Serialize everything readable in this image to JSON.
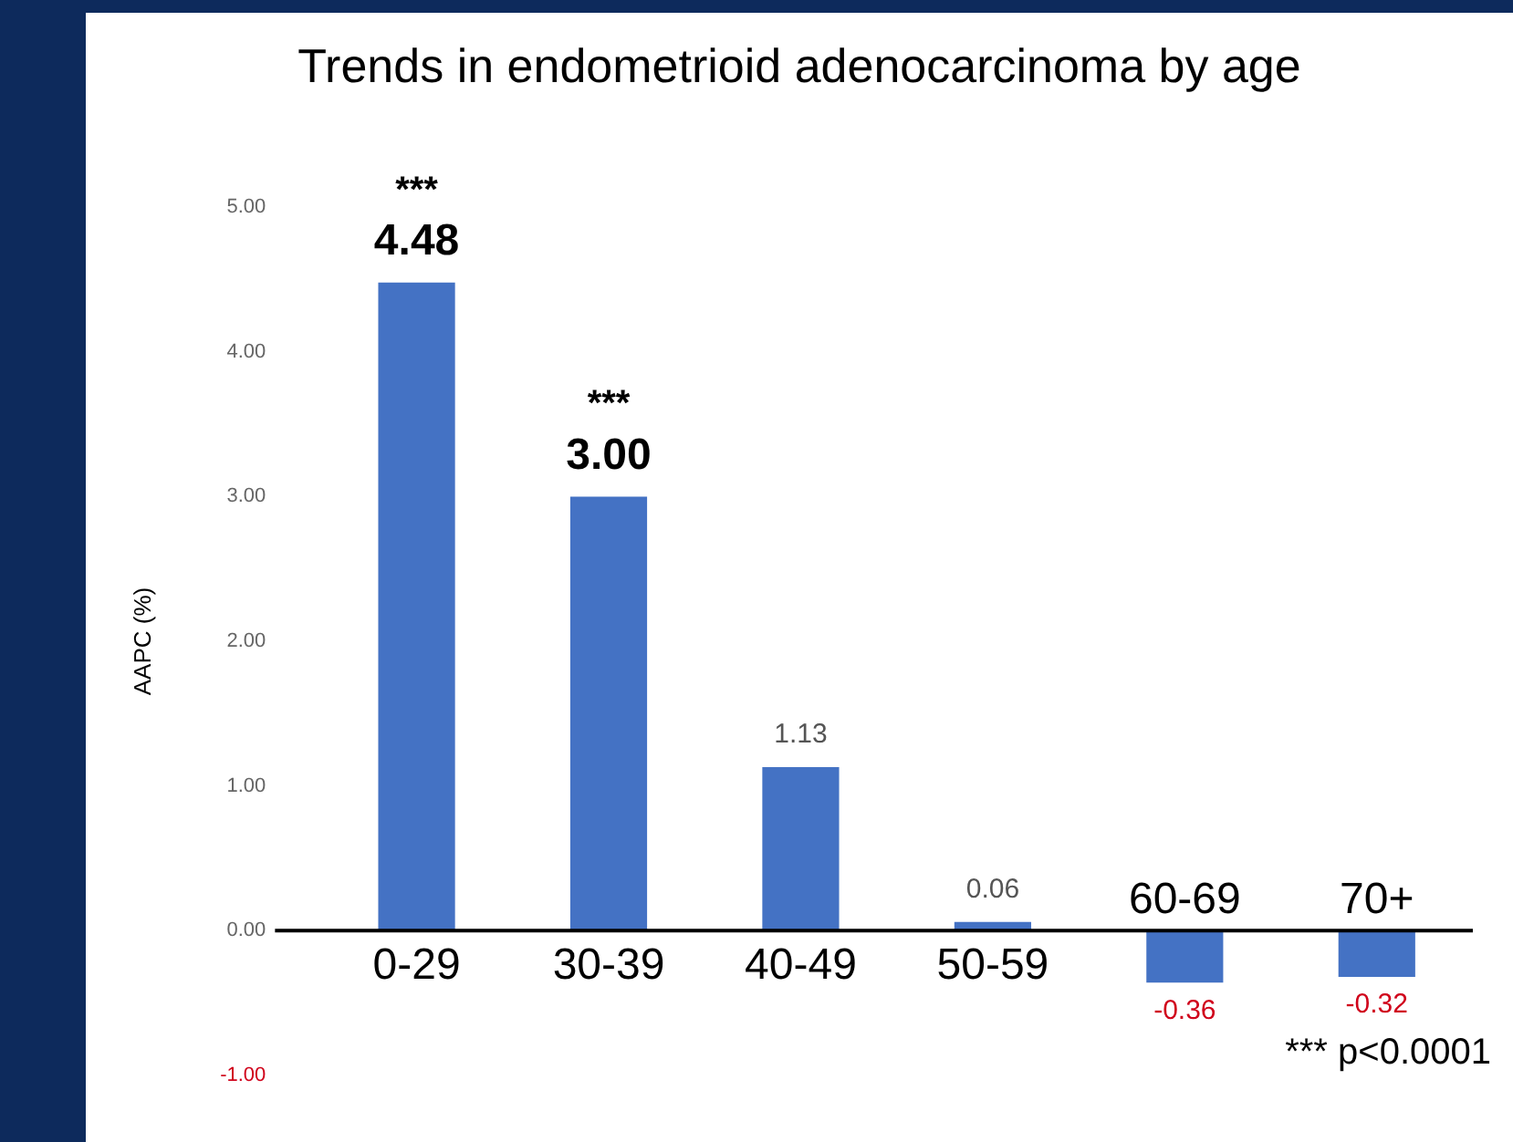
{
  "chart_data": {
    "type": "bar",
    "title": "Trends in endometrioid adenocarcinoma by age",
    "ylabel": "AAPC (%)",
    "categories": [
      "0-29",
      "30-39",
      "40-49",
      "50-59",
      "60-69",
      "70+"
    ],
    "values": [
      4.48,
      3.0,
      1.13,
      0.06,
      -0.36,
      -0.32
    ],
    "value_labels": [
      "4.48",
      "3.00",
      "1.13",
      "0.06",
      "-0.36",
      "-0.32"
    ],
    "color": "#4472c4",
    "ylim": [
      -1,
      5
    ],
    "yticks": [
      {
        "value": -1,
        "label": "-1.00"
      },
      {
        "value": 0,
        "label": "0.00"
      },
      {
        "value": 1,
        "label": "1.00"
      },
      {
        "value": 2,
        "label": "2.00"
      },
      {
        "value": 3,
        "label": "3.00"
      },
      {
        "value": 4,
        "label": "4.00"
      },
      {
        "value": 5,
        "label": "5.00"
      }
    ],
    "grid": false,
    "legend": false,
    "annotations": [
      {
        "text": "***",
        "x": "0-29",
        "y": 4.48
      },
      {
        "text": "***",
        "x": "30-39",
        "y": 3.0
      },
      "*** p<0.0001"
    ]
  }
}
